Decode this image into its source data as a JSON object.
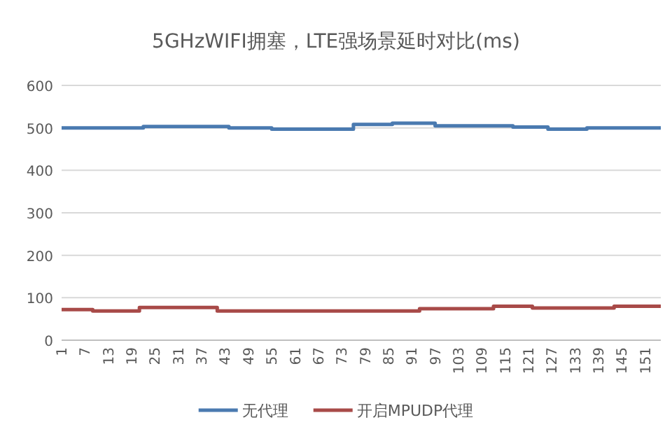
{
  "chart_data": {
    "type": "step",
    "title": "5GHzWIFI拥塞，LTE强场景延时对比(ms)",
    "xlim": [
      1,
      155
    ],
    "xticks": [
      1,
      7,
      13,
      19,
      25,
      31,
      37,
      43,
      49,
      55,
      61,
      67,
      73,
      79,
      85,
      91,
      97,
      103,
      109,
      115,
      121,
      127,
      133,
      139,
      145,
      151
    ],
    "ylim": [
      0,
      600
    ],
    "yticks": [
      0,
      100,
      200,
      300,
      400,
      500,
      600
    ],
    "grid": "y",
    "legend": "bottom",
    "series": [
      {
        "name": "无代理",
        "color": "#4a7ab0",
        "x": [
          1,
          22,
          44,
          55,
          76,
          86,
          97,
          117,
          126,
          136,
          155
        ],
        "values": [
          500,
          503,
          500,
          497,
          508,
          511,
          505,
          502,
          497,
          500,
          500
        ]
      },
      {
        "name": "开启MPUDP代理",
        "color": "#a84a48",
        "x": [
          1,
          9,
          21,
          41,
          93,
          112,
          122,
          143,
          155
        ],
        "values": [
          72,
          69,
          77,
          69,
          74,
          80,
          76,
          80,
          80
        ]
      }
    ]
  }
}
